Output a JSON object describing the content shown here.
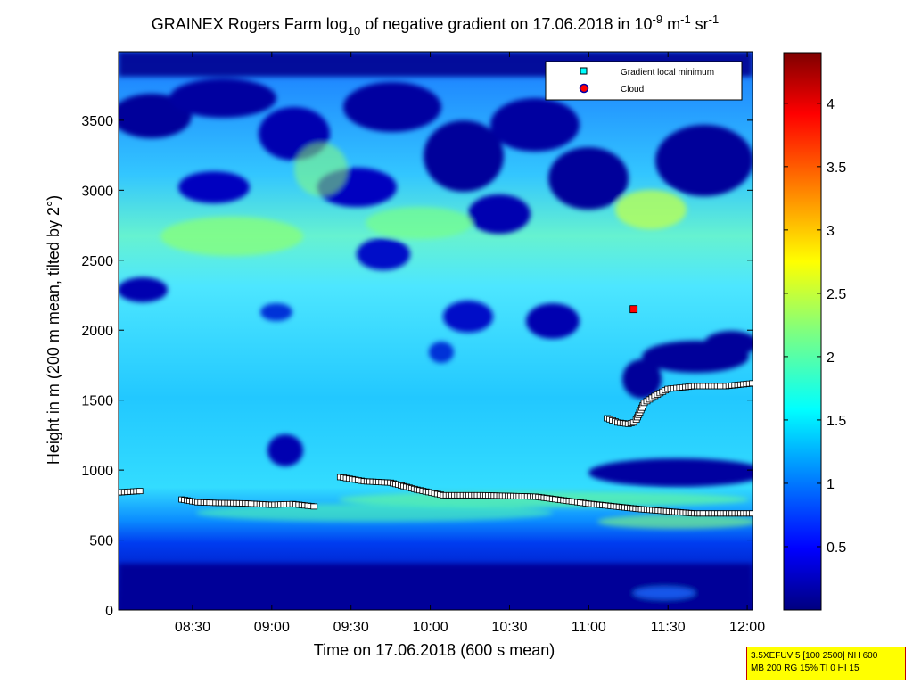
{
  "chart_data": {
    "type": "heatmap",
    "title": {
      "prefix": "GRAINEX Rogers Farm log",
      "sub": "10",
      "middle": " of negative gradient on 17.06.2018 in 10",
      "sup1": "-9",
      "m": " m",
      "sup2": "-1",
      "sr": " sr",
      "sup3": "-1"
    },
    "xlabel": "Time on 17.06.2018 (600 s mean)",
    "ylabel": "Height in m (200 m mean, tilted by 2°)",
    "x_ticks": [
      "08:30",
      "09:00",
      "09:30",
      "10:00",
      "10:30",
      "11:00",
      "11:30",
      "12:00"
    ],
    "x_tick_minutes": [
      510,
      540,
      570,
      600,
      630,
      660,
      690,
      720
    ],
    "xlim_minutes": [
      482,
      722
    ],
    "y_ticks": [
      "0",
      "500",
      "1000",
      "1500",
      "2000",
      "2500",
      "3000",
      "3500"
    ],
    "y_tick_values": [
      0,
      500,
      1000,
      1500,
      2000,
      2500,
      3000,
      3500
    ],
    "ylim": [
      0,
      3990
    ],
    "colorbar": {
      "range": [
        0,
        4.4
      ],
      "ticks": [
        "0.5",
        "1",
        "1.5",
        "2",
        "2.5",
        "3",
        "3.5",
        "4"
      ],
      "tick_values": [
        0.5,
        1,
        1.5,
        2,
        2.5,
        3,
        3.5,
        4
      ],
      "colormap": "jet"
    },
    "legend": {
      "position": "top-right",
      "entries": [
        {
          "label": "Gradient local minimum",
          "marker": "square",
          "color": "#00ffff"
        },
        {
          "label": "Cloud",
          "marker": "circle",
          "color": "#ff0000"
        }
      ]
    },
    "gradient_local_minimum_segments": [
      {
        "x": [
          482,
          490
        ],
        "y": [
          840,
          850
        ]
      },
      {
        "x": [
          506,
          512,
          520,
          530,
          540,
          548,
          556
        ],
        "y": [
          790,
          770,
          765,
          762,
          752,
          757,
          740
        ]
      },
      {
        "x": [
          566,
          575,
          585,
          595,
          605,
          620,
          640,
          660,
          680,
          700,
          722
        ],
        "y": [
          950,
          920,
          910,
          860,
          820,
          820,
          810,
          760,
          720,
          690,
          690
        ]
      },
      {
        "x": [
          667,
          671,
          675,
          677,
          678,
          681,
          685,
          690,
          700,
          712,
          722
        ],
        "y": [
          1370,
          1340,
          1330,
          1340,
          1360,
          1480,
          1530,
          1580,
          1600,
          1600,
          1620
        ]
      }
    ],
    "cloud_points": [
      {
        "x": 677,
        "y": 2150
      }
    ],
    "info_box": [
      "3.5XEFUV 5 [100 2500] NH 600",
      "MB 200 RG 15% TI 0 HI 15"
    ]
  }
}
